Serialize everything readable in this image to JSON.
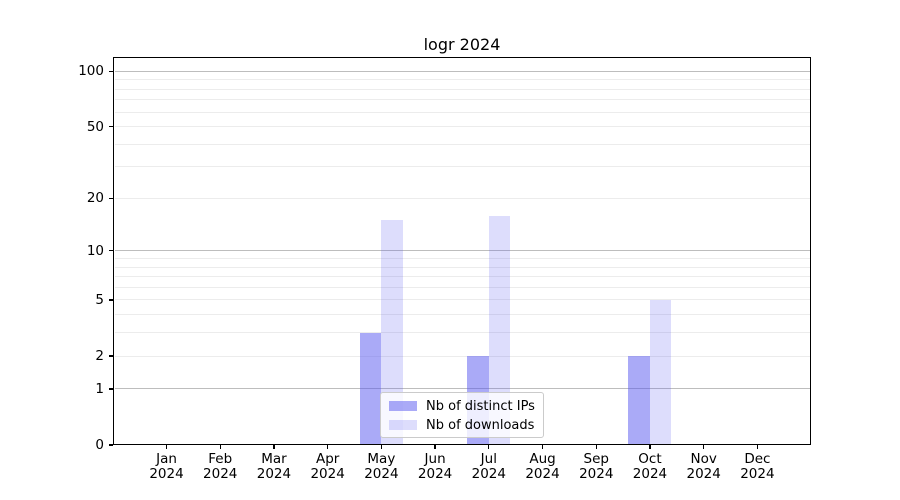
{
  "chart_data": {
    "type": "bar",
    "title": "logr 2024",
    "categories": [
      "Jan 2024",
      "Feb 2024",
      "Mar 2024",
      "Apr 2024",
      "May 2024",
      "Jun 2024",
      "Jul 2024",
      "Aug 2024",
      "Sep 2024",
      "Oct 2024",
      "Nov 2024",
      "Dec 2024"
    ],
    "series": [
      {
        "name": "Nb of distinct IPs",
        "color": "rgba(86,85,239,0.5)",
        "values": [
          0,
          0,
          0,
          0,
          3,
          0,
          2,
          0,
          0,
          2,
          0,
          0
        ]
      },
      {
        "name": "Nb of downloads",
        "color": "rgba(86,85,239,0.2)",
        "values": [
          0,
          0,
          0,
          0,
          15,
          0,
          16,
          0,
          0,
          5,
          0,
          0
        ]
      }
    ],
    "xlabel": "",
    "ylabel": "",
    "yscale": "log1p",
    "ylim": [
      0,
      116
    ],
    "y_tick_labels": [
      "0",
      "1",
      "2",
      "5",
      "10",
      "20",
      "50",
      "100"
    ],
    "y_major_gridlines": [
      1,
      10,
      100
    ],
    "y_minor_gridlines": [
      2,
      3,
      4,
      5,
      6,
      7,
      8,
      9,
      20,
      30,
      40,
      50,
      60,
      70,
      80,
      90
    ],
    "grid": "horizontal",
    "legend_position": "lower center",
    "colors": {
      "major_grid": "#bdbdbd",
      "minor_grid": "#ececec",
      "axis": "#000000",
      "text": "#000000",
      "background": "#ffffff"
    }
  }
}
